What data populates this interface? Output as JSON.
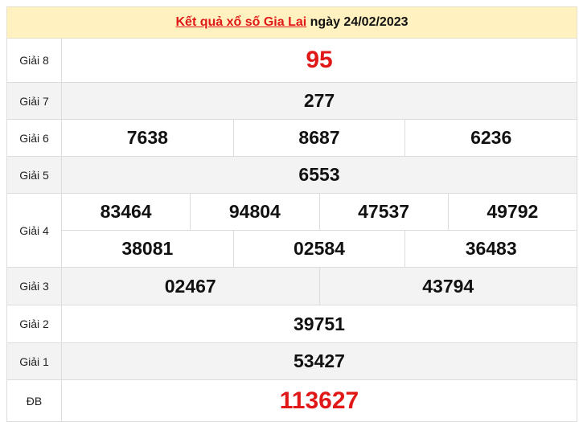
{
  "header": {
    "link": "Kết quả xổ số Gia Lai",
    "date": "ngày 24/02/2023"
  },
  "colors": {
    "accent": "#e01818",
    "header_bg": "#fff2c0"
  },
  "prizes": [
    {
      "label": "Giải 8",
      "rows": [
        [
          "95"
        ]
      ]
    },
    {
      "label": "Giải 7",
      "rows": [
        [
          "277"
        ]
      ]
    },
    {
      "label": "Giải 6",
      "rows": [
        [
          "7638",
          "8687",
          "6236"
        ]
      ]
    },
    {
      "label": "Giải 5",
      "rows": [
        [
          "6553"
        ]
      ]
    },
    {
      "label": "Giải 4",
      "rows": [
        [
          "83464",
          "94804",
          "47537",
          "49792"
        ],
        [
          "38081",
          "02584",
          "36483"
        ]
      ]
    },
    {
      "label": "Giải 3",
      "rows": [
        [
          "02467",
          "43794"
        ]
      ]
    },
    {
      "label": "Giải 2",
      "rows": [
        [
          "39751"
        ]
      ]
    },
    {
      "label": "Giải 1",
      "rows": [
        [
          "53427"
        ]
      ]
    },
    {
      "label": "ĐB",
      "rows": [
        [
          "113627"
        ]
      ]
    }
  ]
}
